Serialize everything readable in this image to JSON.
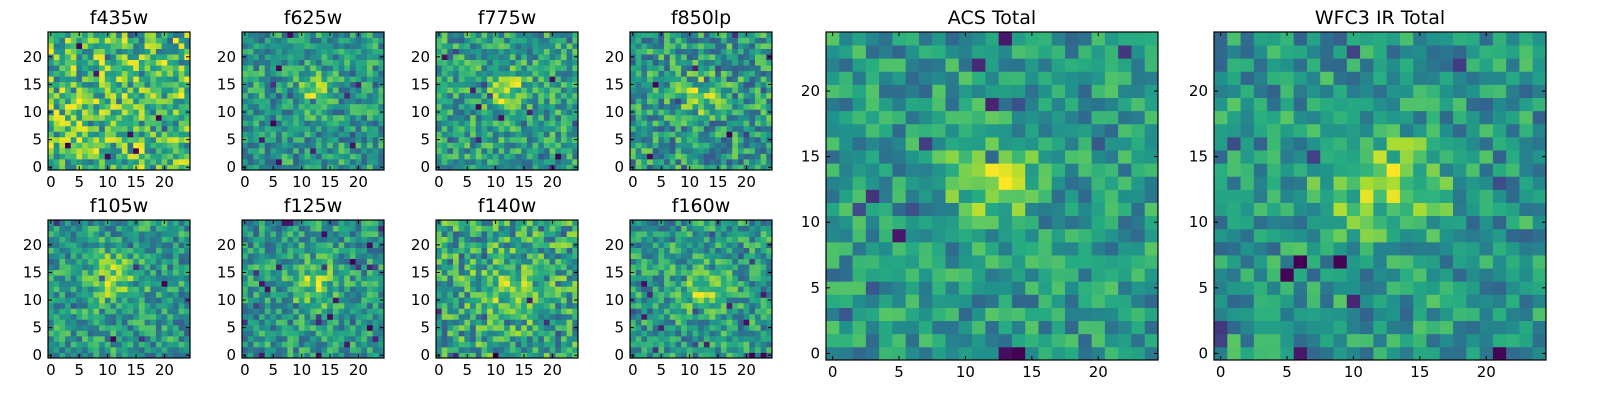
{
  "chart_data": [
    {
      "type": "heatmap",
      "title": "f435w",
      "colormap": "viridis",
      "size": 25,
      "xlim": [
        0,
        24
      ],
      "ylim": [
        0,
        24
      ],
      "xticks": [
        0,
        5,
        10,
        15,
        20
      ],
      "yticks": [
        0,
        5,
        10,
        15,
        20
      ],
      "grid": false,
      "peak": [
        12,
        13
      ],
      "peak_width": 3.0,
      "peak_strength": 0.0,
      "noise": 0.46,
      "seed": 11
    },
    {
      "type": "heatmap",
      "title": "f625w",
      "colormap": "viridis",
      "size": 25,
      "xlim": [
        0,
        24
      ],
      "ylim": [
        0,
        24
      ],
      "xticks": [
        0,
        5,
        10,
        15,
        20
      ],
      "yticks": [
        0,
        5,
        10,
        15,
        20
      ],
      "grid": false,
      "peak": [
        12,
        14
      ],
      "peak_width": 2.2,
      "peak_strength": 0.45,
      "noise": 0.4,
      "seed": 23
    },
    {
      "type": "heatmap",
      "title": "f775w",
      "colormap": "viridis",
      "size": 25,
      "xlim": [
        0,
        24
      ],
      "ylim": [
        0,
        24
      ],
      "xticks": [
        0,
        5,
        10,
        15,
        20
      ],
      "yticks": [
        0,
        5,
        10,
        15,
        20
      ],
      "grid": false,
      "peak": [
        12,
        14
      ],
      "peak_width": 2.3,
      "peak_strength": 0.5,
      "noise": 0.38,
      "seed": 37
    },
    {
      "type": "heatmap",
      "title": "f850lp",
      "colormap": "viridis",
      "size": 25,
      "xlim": [
        0,
        24
      ],
      "ylim": [
        0,
        24
      ],
      "xticks": [
        0,
        5,
        10,
        15,
        20
      ],
      "yticks": [
        0,
        5,
        10,
        15,
        20
      ],
      "grid": false,
      "peak": [
        12,
        13
      ],
      "peak_width": 2.6,
      "peak_strength": 0.35,
      "noise": 0.42,
      "seed": 41
    },
    {
      "type": "heatmap",
      "title": "f105w",
      "colormap": "viridis",
      "size": 25,
      "xlim": [
        0,
        24
      ],
      "ylim": [
        0,
        24
      ],
      "xticks": [
        0,
        5,
        10,
        15,
        20
      ],
      "yticks": [
        0,
        5,
        10,
        15,
        20
      ],
      "grid": false,
      "peak": [
        11,
        14
      ],
      "peak_width": 3.5,
      "peak_strength": 0.4,
      "noise": 0.36,
      "seed": 53
    },
    {
      "type": "heatmap",
      "title": "f125w",
      "colormap": "viridis",
      "size": 25,
      "xlim": [
        0,
        24
      ],
      "ylim": [
        0,
        24
      ],
      "xticks": [
        0,
        5,
        10,
        15,
        20
      ],
      "yticks": [
        0,
        5,
        10,
        15,
        20
      ],
      "grid": false,
      "peak": [
        12,
        13
      ],
      "peak_width": 3.0,
      "peak_strength": 0.45,
      "noise": 0.4,
      "seed": 67
    },
    {
      "type": "heatmap",
      "title": "f140w",
      "colormap": "viridis",
      "size": 25,
      "xlim": [
        0,
        24
      ],
      "ylim": [
        0,
        24
      ],
      "xticks": [
        0,
        5,
        10,
        15,
        20
      ],
      "yticks": [
        0,
        5,
        10,
        15,
        20
      ],
      "grid": false,
      "peak": [
        12,
        12
      ],
      "peak_width": 3.5,
      "peak_strength": 0.3,
      "noise": 0.42,
      "seed": 79
    },
    {
      "type": "heatmap",
      "title": "f160w",
      "colormap": "viridis",
      "size": 25,
      "xlim": [
        0,
        24
      ],
      "ylim": [
        0,
        24
      ],
      "xticks": [
        0,
        5,
        10,
        15,
        20
      ],
      "yticks": [
        0,
        5,
        10,
        15,
        20
      ],
      "grid": false,
      "peak": [
        12,
        12
      ],
      "peak_width": 3.0,
      "peak_strength": 0.4,
      "noise": 0.4,
      "seed": 83
    },
    {
      "type": "heatmap",
      "title": "ACS Total",
      "colormap": "viridis",
      "size": 25,
      "xlim": [
        0,
        24
      ],
      "ylim": [
        0,
        24
      ],
      "xticks": [
        0,
        5,
        10,
        15,
        20
      ],
      "yticks": [
        0,
        5,
        10,
        15,
        20
      ],
      "grid": false,
      "peak": [
        12,
        13
      ],
      "peak_width": 2.2,
      "peak_strength": 0.55,
      "noise": 0.34,
      "seed": 97
    },
    {
      "type": "heatmap",
      "title": "WFC3 IR Total",
      "colormap": "viridis",
      "size": 25,
      "xlim": [
        0,
        24
      ],
      "ylim": [
        0,
        24
      ],
      "xticks": [
        0,
        5,
        10,
        15,
        20
      ],
      "yticks": [
        0,
        5,
        10,
        15,
        20
      ],
      "grid": false,
      "peak": [
        12,
        13
      ],
      "peak_width": 3.2,
      "peak_strength": 0.45,
      "noise": 0.34,
      "seed": 101
    }
  ]
}
